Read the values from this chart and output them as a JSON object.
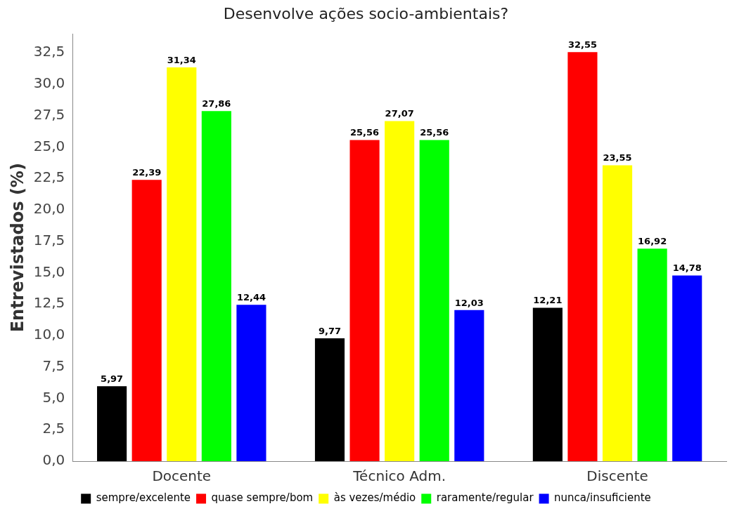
{
  "chart_data": {
    "type": "bar",
    "title": "Desenvolve ações socio-ambientais?",
    "ylabel": "Entrevistados (%)",
    "categories": [
      "Docente",
      "Técnico Adm.",
      "Discente"
    ],
    "series": [
      {
        "name": "sempre/excelente",
        "color": "#000000",
        "values": [
          5.97,
          9.77,
          12.21
        ],
        "value_labels": [
          "5,97",
          "9,77",
          "12,21"
        ]
      },
      {
        "name": "quase sempre/bom",
        "color": "#ff0000",
        "values": [
          22.39,
          25.56,
          32.55
        ],
        "value_labels": [
          "22,39",
          "25,56",
          "32,55"
        ]
      },
      {
        "name": "às vezes/médio",
        "color": "#ffff00",
        "values": [
          31.34,
          27.07,
          23.55
        ],
        "value_labels": [
          "31,34",
          "27,07",
          "23,55"
        ]
      },
      {
        "name": "raramente/regular",
        "color": "#00ff00",
        "values": [
          27.86,
          25.56,
          16.92
        ],
        "value_labels": [
          "27,86",
          "25,56",
          "16,92"
        ]
      },
      {
        "name": "nunca/insuficiente",
        "color": "#0000ff",
        "values": [
          12.44,
          12.03,
          14.78
        ],
        "value_labels": [
          "12,44",
          "12,03",
          "14,78"
        ]
      }
    ],
    "ylim": [
      0,
      34
    ],
    "yticks": [
      {
        "value": 0,
        "label": "0,0"
      },
      {
        "value": 2.5,
        "label": "2,5"
      },
      {
        "value": 5,
        "label": "5,0"
      },
      {
        "value": 7.5,
        "label": "7,5"
      },
      {
        "value": 10,
        "label": "10,0"
      },
      {
        "value": 12.5,
        "label": "12,5"
      },
      {
        "value": 15,
        "label": "15,0"
      },
      {
        "value": 17.5,
        "label": "17,5"
      },
      {
        "value": 20,
        "label": "20,0"
      },
      {
        "value": 22.5,
        "label": "22,5"
      },
      {
        "value": 25,
        "label": "25,0"
      },
      {
        "value": 27.5,
        "label": "27,5"
      },
      {
        "value": 30,
        "label": "30,0"
      },
      {
        "value": 32.5,
        "label": "32,5"
      }
    ],
    "grid": false,
    "legend": "bottom"
  }
}
